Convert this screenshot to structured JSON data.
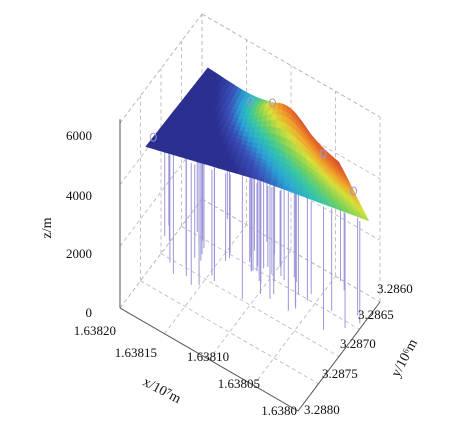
{
  "chart_data": {
    "type": "surface",
    "title": "",
    "axes": {
      "x": {
        "label": "x/10⁷m",
        "ticks": [
          "1.63820",
          "1.63815",
          "1.63810",
          "1.63805",
          "1.6380"
        ],
        "range": [
          1.6382,
          1.638
        ]
      },
      "y": {
        "label": "y/10⁶m",
        "ticks": [
          "3.2860",
          "3.2865",
          "3.2870",
          "3.2875",
          "3.2880"
        ],
        "range": [
          3.286,
          3.288
        ]
      },
      "z": {
        "label": "z/m",
        "ticks": [
          "0",
          "2000",
          "4000",
          "6000"
        ],
        "range": [
          0,
          6000
        ]
      }
    },
    "grid": true,
    "surface": {
      "z_min": 4200,
      "z_max": 6100,
      "colormap": [
        "#2b2f8f",
        "#3a4fb8",
        "#2aa3d6",
        "#35c6a8",
        "#7cd25a",
        "#d7df3a",
        "#f2a12b",
        "#e0602b",
        "#b8282a",
        "#3a0b0b"
      ]
    },
    "borehole_count": 64
  },
  "colors": {
    "grid": "#b5b5b5",
    "axis": "#555555",
    "borehole": "#9a96d8"
  }
}
